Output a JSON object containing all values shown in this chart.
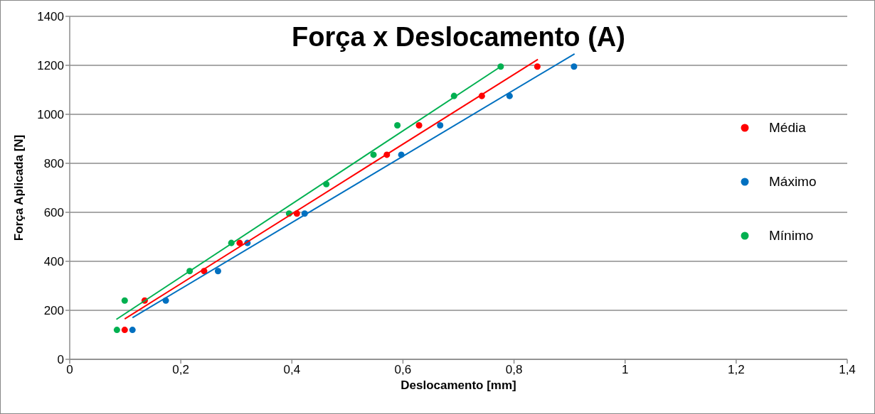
{
  "chart_data": {
    "type": "scatter",
    "title": "Força x Deslocamento (A)",
    "xlabel": "Deslocamento [mm]",
    "ylabel": "Força Aplicada [N]",
    "xlim": [
      0,
      1.4
    ],
    "xticks": [
      0,
      {
        "value": 0.2,
        "label": "0,2"
      },
      {
        "value": 0.4,
        "label": "0,4"
      },
      {
        "value": 0.6,
        "label": "0,6"
      },
      {
        "value": 0.8,
        "label": "0,8"
      },
      1,
      {
        "value": 1.2,
        "label": "1,2"
      },
      {
        "value": 1.4,
        "label": "1,4"
      }
    ],
    "ylim": [
      0,
      1400
    ],
    "yticks": [
      0,
      200,
      400,
      600,
      800,
      1000,
      1200,
      1400
    ],
    "grid": "y",
    "legend": "right",
    "marker": "circle",
    "series": [
      {
        "name": "Média",
        "color": "#ff0000",
        "x": [
          0.099,
          0.135,
          0.242,
          0.306,
          0.409,
          null,
          0.571,
          0.629,
          0.742,
          0.842
        ],
        "values": [
          120,
          240,
          360,
          475,
          595,
          null,
          835,
          955,
          1075,
          1195
        ]
      },
      {
        "name": "Máximo",
        "color": "#0070c0",
        "x": [
          0.113,
          0.173,
          0.267,
          0.32,
          0.423,
          null,
          0.597,
          0.667,
          0.792,
          0.908
        ],
        "values": [
          120,
          240,
          360,
          475,
          595,
          null,
          835,
          955,
          1075,
          1195
        ]
      },
      {
        "name": "Mínimo",
        "color": "#00b050",
        "x": [
          0.085,
          0.099,
          0.216,
          0.291,
          0.395,
          0.462,
          0.547,
          0.59,
          0.692,
          0.776
        ],
        "values": [
          120,
          240,
          360,
          475,
          595,
          715,
          835,
          955,
          1075,
          1195
        ]
      },
      {
        "type": "line",
        "marker": "none",
        "color": "#ff0000",
        "x": [
          0.099,
          0.843
        ],
        "values": [
          165,
          1224
        ]
      },
      {
        "type": "line",
        "marker": "none",
        "color": "#0070c0",
        "x": [
          0.113,
          0.909
        ],
        "values": [
          170,
          1247
        ]
      },
      {
        "type": "line",
        "marker": "none",
        "color": "#00b050",
        "x": [
          0.084,
          0.776
        ],
        "values": [
          163,
          1195
        ]
      }
    ]
  }
}
